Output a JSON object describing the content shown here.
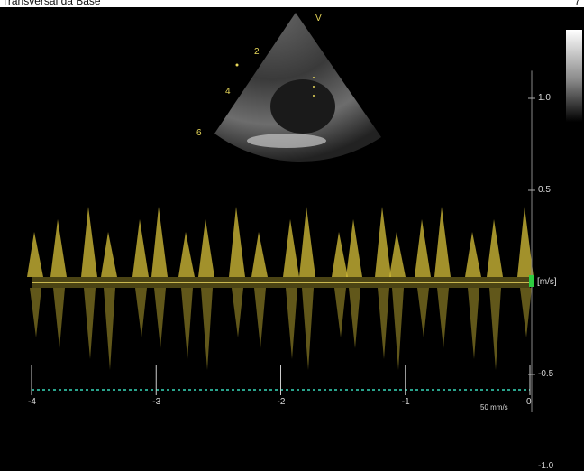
{
  "header": {
    "title": "Transversal da Base",
    "right_text": "7"
  },
  "sector_labels": {
    "view_marker": "V",
    "depths": [
      "2",
      "4",
      "6"
    ]
  },
  "doppler": {
    "velocity_unit": "[m/s]",
    "velocity_ticks": [
      {
        "label": "1.0",
        "value": 1.0
      },
      {
        "label": "0.5",
        "value": 0.5
      },
      {
        "label": "-0.5",
        "value": -0.5
      },
      {
        "label": "-1.0",
        "value": -1.0
      }
    ],
    "time_ticks": [
      {
        "label": "-4",
        "value": -4
      },
      {
        "label": "-3",
        "value": -3
      },
      {
        "label": "-2",
        "value": -2
      },
      {
        "label": "-1",
        "value": -1
      },
      {
        "label": "0",
        "value": 0
      }
    ],
    "sweep_speed": "50 mm/s",
    "colors": {
      "spectrum": "#d8c23a",
      "baseline": "#c9b850",
      "time_axis": "#29a38c",
      "marker": "#2ecc40"
    }
  }
}
